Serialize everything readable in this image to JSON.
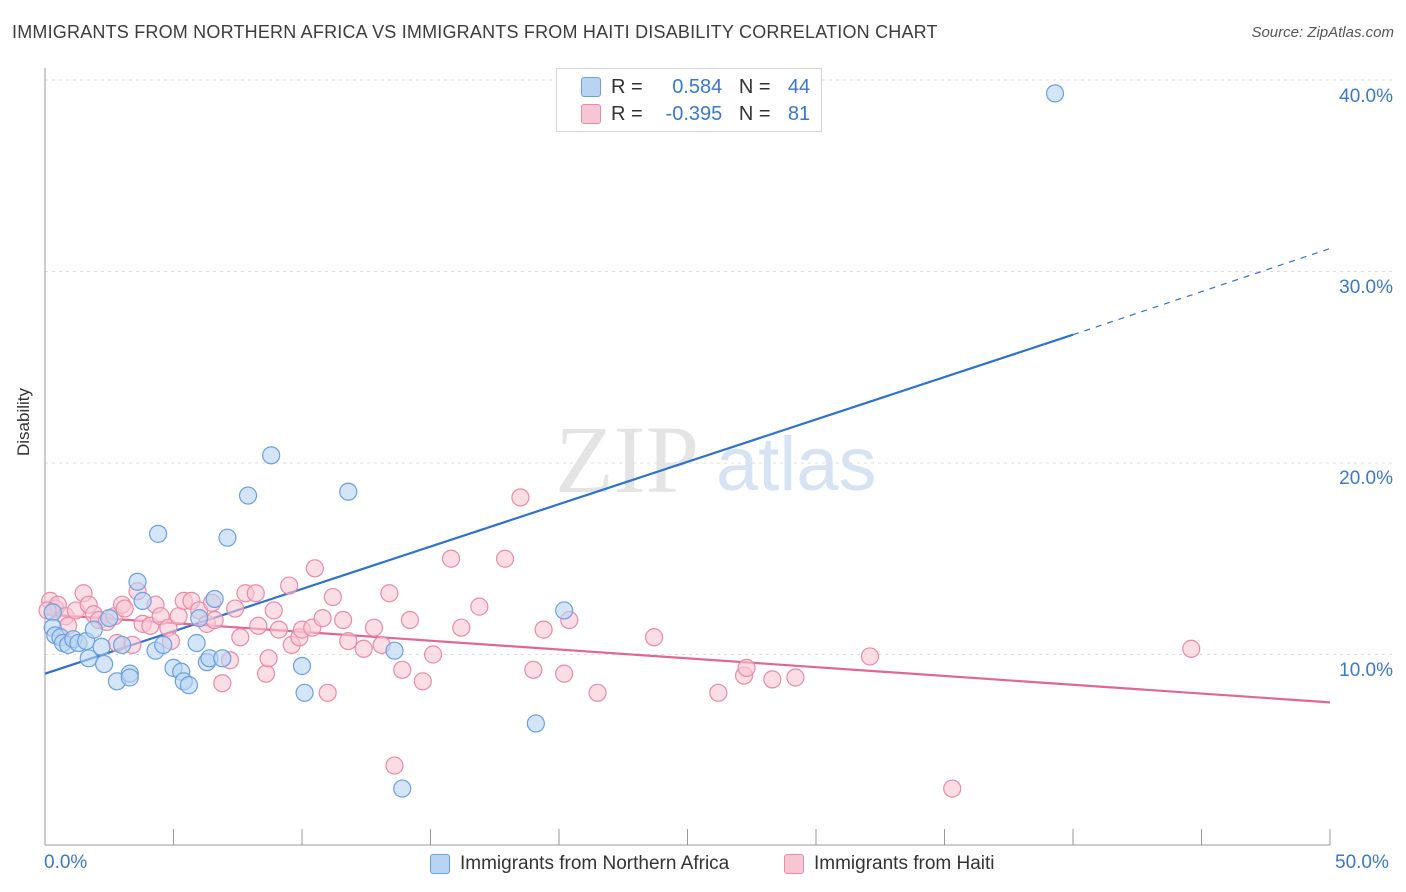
{
  "title": "IMMIGRANTS FROM NORTHERN AFRICA VS IMMIGRANTS FROM HAITI DISABILITY CORRELATION CHART",
  "source": "Source: ZipAtlas.com",
  "watermark": {
    "zip": "ZIP",
    "atlas": "atlas"
  },
  "legend": {
    "r_label": "R =",
    "n_label": "N =",
    "series": [
      {
        "r": "0.584",
        "n": "44"
      },
      {
        "r": "-0.395",
        "n": "81"
      }
    ]
  },
  "chart_data": {
    "type": "scatter",
    "title": "IMMIGRANTS FROM NORTHERN AFRICA VS IMMIGRANTS FROM HAITI DISABILITY CORRELATION CHART",
    "xlabel": "",
    "ylabel": "Disability",
    "xlim": [
      0,
      50
    ],
    "ylim": [
      0,
      42
    ],
    "x_tick_labels": [
      "0.0%",
      "50.0%"
    ],
    "y_ticks": [
      10,
      20,
      30,
      40
    ],
    "y_tick_labels": [
      "10.0%",
      "20.0%",
      "30.0%",
      "40.0%"
    ],
    "series": [
      {
        "name": "Immigrants from Northern Africa",
        "color": "#6a9fe0",
        "fill": "#b9d3f3",
        "line_color": "#2e72cc",
        "trend": {
          "x0": 0,
          "y0": 9.0,
          "x1": 40,
          "y1": 26.7,
          "dash_to_x": 50,
          "dash_to_y": 31.2
        },
        "points": [
          [
            0.3,
            12.2
          ],
          [
            0.3,
            11.4
          ],
          [
            0.4,
            11.0
          ],
          [
            0.6,
            10.9
          ],
          [
            0.7,
            10.6
          ],
          [
            0.9,
            10.5
          ],
          [
            1.1,
            10.8
          ],
          [
            1.3,
            10.6
          ],
          [
            1.6,
            10.7
          ],
          [
            1.7,
            9.8
          ],
          [
            1.9,
            11.3
          ],
          [
            2.2,
            10.4
          ],
          [
            2.3,
            9.5
          ],
          [
            2.5,
            11.9
          ],
          [
            2.8,
            8.6
          ],
          [
            3.0,
            10.5
          ],
          [
            3.3,
            9.0
          ],
          [
            3.3,
            8.8
          ],
          [
            3.6,
            13.8
          ],
          [
            3.8,
            12.8
          ],
          [
            4.3,
            10.2
          ],
          [
            4.4,
            16.3
          ],
          [
            4.6,
            10.5
          ],
          [
            5.0,
            9.3
          ],
          [
            5.3,
            9.1
          ],
          [
            5.4,
            8.6
          ],
          [
            5.6,
            8.4
          ],
          [
            5.9,
            10.6
          ],
          [
            6.0,
            11.9
          ],
          [
            6.3,
            9.6
          ],
          [
            6.4,
            9.8
          ],
          [
            6.6,
            12.9
          ],
          [
            6.9,
            9.8
          ],
          [
            7.1,
            16.1
          ],
          [
            7.9,
            18.3
          ],
          [
            8.8,
            20.4
          ],
          [
            10.0,
            9.4
          ],
          [
            10.1,
            8.0
          ],
          [
            11.8,
            18.5
          ],
          [
            13.6,
            10.2
          ],
          [
            13.9,
            3.0
          ],
          [
            19.1,
            6.4
          ],
          [
            20.2,
            12.3
          ],
          [
            39.3,
            39.3
          ]
        ]
      },
      {
        "name": "Immigrants from Haiti",
        "color": "#e88aa6",
        "fill": "#f6c6d4",
        "line_color": "#e36593",
        "trend": {
          "x0": 0,
          "y0": 12.1,
          "x1": 50,
          "y1": 7.5
        },
        "points": [
          [
            0.2,
            12.8
          ],
          [
            0.4,
            12.4
          ],
          [
            0.5,
            12.6
          ],
          [
            0.8,
            12.0
          ],
          [
            0.9,
            11.5
          ],
          [
            1.2,
            12.3
          ],
          [
            1.5,
            13.2
          ],
          [
            1.7,
            12.6
          ],
          [
            1.9,
            12.1
          ],
          [
            2.1,
            11.8
          ],
          [
            2.4,
            11.7
          ],
          [
            2.7,
            12.0
          ],
          [
            2.8,
            10.6
          ],
          [
            3.0,
            12.6
          ],
          [
            3.1,
            12.4
          ],
          [
            3.4,
            10.5
          ],
          [
            3.6,
            13.3
          ],
          [
            3.8,
            11.6
          ],
          [
            4.1,
            11.5
          ],
          [
            4.3,
            12.6
          ],
          [
            4.5,
            12.0
          ],
          [
            4.8,
            11.4
          ],
          [
            4.9,
            10.7
          ],
          [
            5.2,
            12.0
          ],
          [
            5.4,
            12.8
          ],
          [
            5.7,
            12.8
          ],
          [
            6.0,
            12.3
          ],
          [
            6.3,
            11.6
          ],
          [
            6.5,
            12.7
          ],
          [
            6.6,
            11.8
          ],
          [
            6.9,
            8.5
          ],
          [
            7.2,
            9.7
          ],
          [
            7.4,
            12.4
          ],
          [
            7.6,
            10.9
          ],
          [
            7.8,
            13.2
          ],
          [
            8.2,
            13.2
          ],
          [
            8.3,
            11.5
          ],
          [
            8.6,
            9.0
          ],
          [
            8.7,
            9.8
          ],
          [
            8.9,
            12.3
          ],
          [
            9.1,
            11.3
          ],
          [
            9.5,
            13.6
          ],
          [
            9.6,
            10.5
          ],
          [
            9.9,
            10.9
          ],
          [
            10.0,
            11.3
          ],
          [
            10.4,
            11.4
          ],
          [
            10.5,
            14.5
          ],
          [
            10.8,
            11.9
          ],
          [
            11.0,
            8.0
          ],
          [
            11.2,
            13.0
          ],
          [
            11.6,
            11.8
          ],
          [
            11.8,
            10.7
          ],
          [
            12.4,
            10.3
          ],
          [
            12.8,
            11.4
          ],
          [
            13.1,
            10.5
          ],
          [
            13.4,
            13.2
          ],
          [
            13.6,
            4.2
          ],
          [
            13.9,
            9.2
          ],
          [
            14.2,
            11.8
          ],
          [
            14.7,
            8.6
          ],
          [
            15.1,
            10.0
          ],
          [
            15.8,
            15.0
          ],
          [
            16.2,
            11.4
          ],
          [
            16.9,
            12.5
          ],
          [
            17.9,
            15.0
          ],
          [
            18.5,
            18.2
          ],
          [
            19.0,
            9.2
          ],
          [
            19.4,
            11.3
          ],
          [
            20.2,
            9.0
          ],
          [
            20.4,
            11.8
          ],
          [
            21.5,
            8.0
          ],
          [
            23.7,
            10.9
          ],
          [
            26.2,
            8.0
          ],
          [
            27.2,
            8.9
          ],
          [
            27.3,
            9.3
          ],
          [
            28.3,
            8.7
          ],
          [
            29.2,
            8.8
          ],
          [
            32.1,
            9.9
          ],
          [
            35.3,
            3.0
          ],
          [
            44.6,
            10.3
          ],
          [
            0.1,
            12.3
          ]
        ]
      }
    ]
  }
}
